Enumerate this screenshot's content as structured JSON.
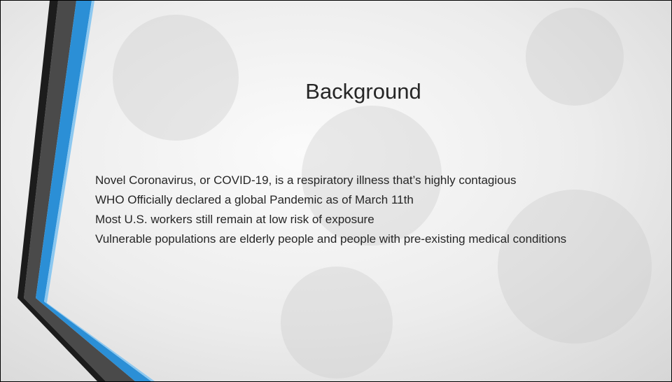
{
  "slide": {
    "title": "Background",
    "bullets": [
      "Novel Coronavirus, or COVID-19, is a respiratory illness that’s highly contagious",
      "WHO Officially declared a global Pandemic as of March 11th",
      "Most U.S. workers still remain at low risk of exposure",
      "Vulnerable populations are elderly people and people with pre-existing medical conditions"
    ]
  }
}
